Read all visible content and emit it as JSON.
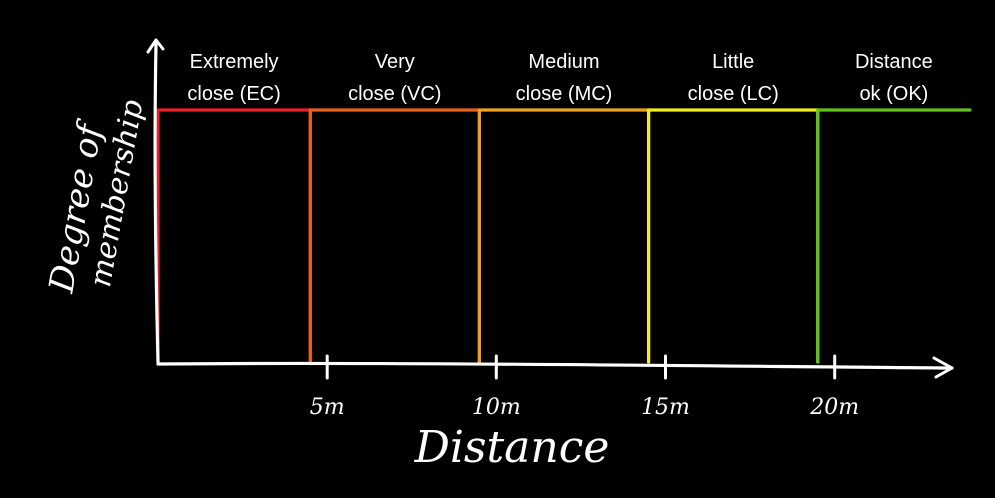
{
  "chart_data": {
    "type": "line",
    "title": "",
    "xlabel": "Distance",
    "ylabel_lines": [
      "Degree of",
      "membership"
    ],
    "x_ticks": [
      {
        "value": 5,
        "label": "5m"
      },
      {
        "value": 10,
        "label": "10m"
      },
      {
        "value": 15,
        "label": "15m"
      },
      {
        "value": 20,
        "label": "20m"
      }
    ],
    "xlim": [
      0,
      24
    ],
    "ylim": [
      0,
      1
    ],
    "grid": false,
    "series": [
      {
        "name": "Extremely close (EC)",
        "label_lines": [
          "Extremely",
          "close (EC)"
        ],
        "x": [
          0,
          0,
          4.5,
          4.5
        ],
        "y": [
          0,
          1,
          1,
          0
        ],
        "color": "#e8202a"
      },
      {
        "name": "Very close (VC)",
        "label_lines": [
          "Very",
          "close (VC)"
        ],
        "x": [
          4.5,
          4.5,
          9.5,
          9.5
        ],
        "y": [
          0,
          1,
          1,
          0
        ],
        "color": "#e8641e"
      },
      {
        "name": "Medium close (MC)",
        "label_lines": [
          "Medium",
          "close (MC)"
        ],
        "x": [
          9.5,
          9.5,
          14.5,
          14.5
        ],
        "y": [
          0,
          1,
          1,
          0
        ],
        "color": "#f0a020"
      },
      {
        "name": "Little close (LC)",
        "label_lines": [
          "Little",
          "close (LC)"
        ],
        "x": [
          14.5,
          14.5,
          19.5,
          19.5
        ],
        "y": [
          0,
          1,
          1,
          0
        ],
        "color": "#f2ee1a"
      },
      {
        "name": "Distance ok (OK)",
        "label_lines": [
          "Distance",
          "ok (OK)"
        ],
        "x": [
          19.5,
          19.5,
          24,
          24
        ],
        "y": [
          0,
          1,
          1,
          1
        ],
        "color": "#5ec41a"
      }
    ]
  }
}
